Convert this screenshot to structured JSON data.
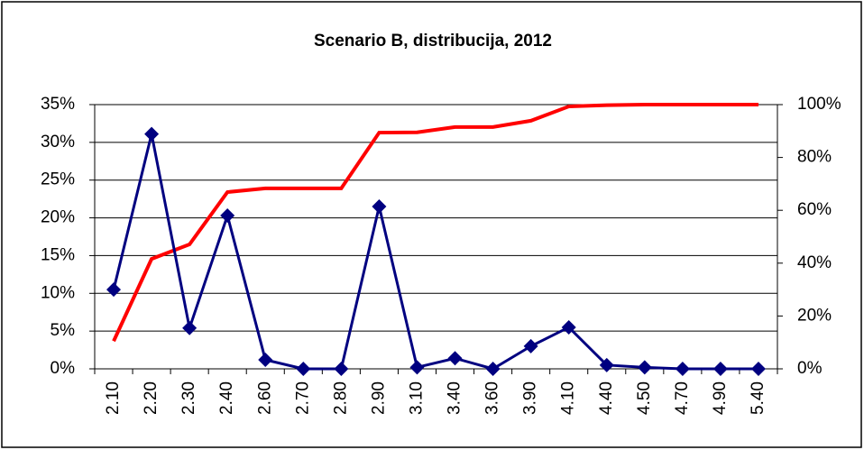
{
  "chart_data": {
    "type": "line",
    "title": "Scenario B, distribucija, 2012",
    "categories": [
      "2.10",
      "2.20",
      "2.30",
      "2.40",
      "2.60",
      "2.70",
      "2.80",
      "2.90",
      "3.10",
      "3.40",
      "3.60",
      "3.90",
      "4.10",
      "4.40",
      "4.50",
      "4.70",
      "4.90",
      "5.40"
    ],
    "series": [
      {
        "color": "#000080",
        "marker": "diamond",
        "values": [
          10.5,
          31.1,
          5.4,
          20.3,
          1.2,
          0,
          0,
          21.5,
          0.2,
          1.4,
          0,
          3.0,
          5.5,
          0.5,
          0.2,
          0,
          0,
          0
        ]
      },
      {
        "color": "#ff0000",
        "axis": "y2",
        "values": [
          10.5,
          41.6,
          47.1,
          66.9,
          68.3,
          68.3,
          68.3,
          89.4,
          89.5,
          91.5,
          91.5,
          93.9,
          99.3,
          99.8,
          100,
          100,
          100,
          100
        ]
      }
    ],
    "ylim": [
      0,
      35
    ],
    "yticks": [
      {
        "value": 0,
        "label": "0%"
      },
      {
        "value": 5,
        "label": "5%"
      },
      {
        "value": 10,
        "label": "10%"
      },
      {
        "value": 15,
        "label": "15%"
      },
      {
        "value": 20,
        "label": "20%"
      },
      {
        "value": 25,
        "label": "25%"
      },
      {
        "value": 30,
        "label": "30%"
      },
      {
        "value": 35,
        "label": "35%"
      }
    ],
    "y2lim": [
      0,
      100
    ],
    "y2ticks": [
      {
        "value": 0,
        "label": "0%"
      },
      {
        "value": 20,
        "label": "20%"
      },
      {
        "value": 40,
        "label": "40%"
      },
      {
        "value": 60,
        "label": "60%"
      },
      {
        "value": 80,
        "label": "80%"
      },
      {
        "value": 100,
        "label": "100%"
      }
    ],
    "grid": true
  }
}
